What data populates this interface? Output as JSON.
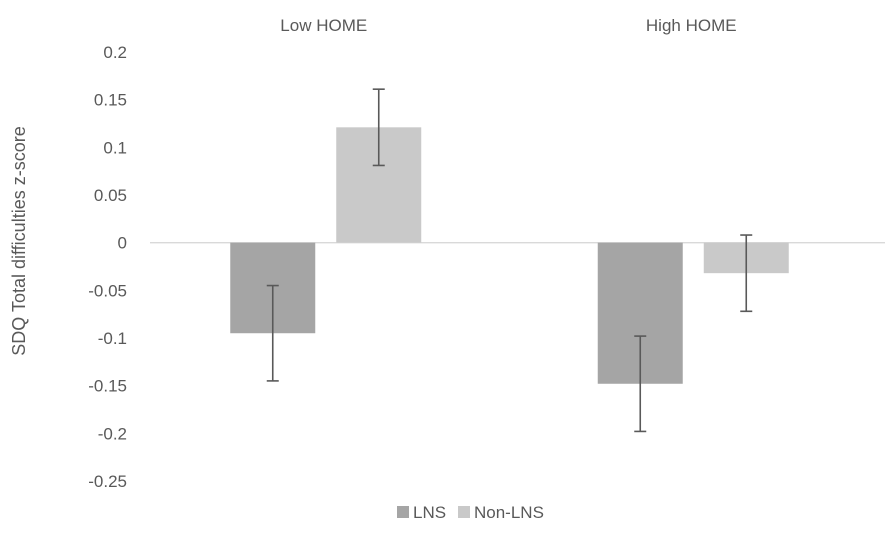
{
  "chart_data": {
    "type": "bar",
    "categories": [
      "Low HOME",
      "High HOME"
    ],
    "series": [
      {
        "name": "LNS",
        "values": [
          -0.095,
          -0.148
        ],
        "error": [
          0.05,
          0.05
        ],
        "color": "#a5a5a5"
      },
      {
        "name": "Non-LNS",
        "values": [
          0.121,
          -0.032
        ],
        "error": [
          0.04,
          0.04
        ],
        "color": "#c9c9c9"
      }
    ],
    "ylabel": "SDQ Total difficulties z-score",
    "ylim": [
      -0.25,
      0.2
    ],
    "yticks": [
      0.2,
      0.15,
      0.1,
      0.05,
      0,
      -0.05,
      -0.1,
      -0.15,
      -0.2,
      -0.25
    ],
    "ytick_labels": [
      "0.2",
      "0.15",
      "0.1",
      "0.05",
      "0",
      "-0.05",
      "-0.1",
      "-0.15",
      "-0.2",
      "-0.25"
    ],
    "category_label_position": "top",
    "grid": false,
    "legend": "bottom-center",
    "colors": {
      "zero_line": "#d9d9d9",
      "error_bar": "#595959",
      "text": "#595959"
    }
  }
}
